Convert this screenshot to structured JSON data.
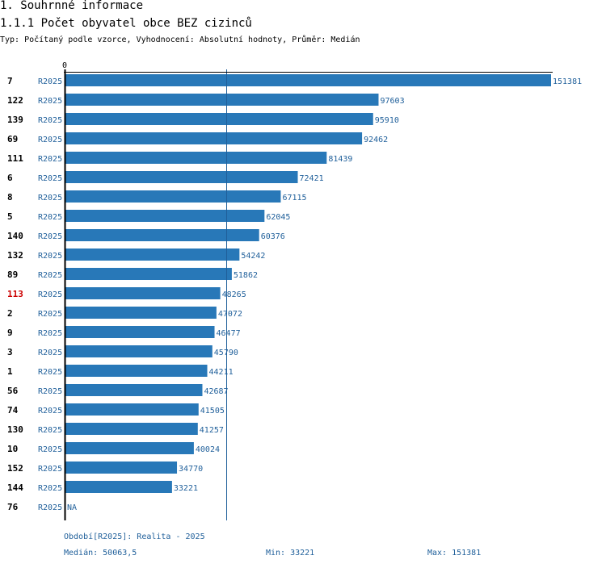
{
  "header": {
    "title": "1. Souhrnné informace",
    "subtitle": "1.1.1 Počet obyvatel obce BEZ cizinců",
    "type_line": "Typ: Počítaný podle vzorce, Vyhodnocení: Absolutní hodnoty, Průměr: Medián"
  },
  "colors": {
    "bar": "#2878b8",
    "label": "#1f5f9a",
    "highlight": "#cc0000",
    "axis": "#000000",
    "median_line": "#1f5f9a"
  },
  "chart_data": {
    "type": "bar",
    "orientation": "horizontal",
    "axis_zero_label": "0",
    "xlim": [
      0,
      151381
    ],
    "median": 50063.5,
    "highlight_category": "113",
    "period_label": "R2025",
    "categories": [
      "7",
      "122",
      "139",
      "69",
      "111",
      "6",
      "8",
      "5",
      "140",
      "132",
      "89",
      "113",
      "2",
      "9",
      "3",
      "1",
      "56",
      "74",
      "130",
      "10",
      "152",
      "144",
      "76"
    ],
    "values": [
      151381,
      97603,
      95910,
      92462,
      81439,
      72421,
      67115,
      62045,
      60376,
      54242,
      51862,
      48265,
      47072,
      46477,
      45790,
      44211,
      42687,
      41505,
      41257,
      40024,
      34770,
      33221,
      null
    ],
    "value_labels": [
      "151381",
      "97603",
      "95910",
      "92462",
      "81439",
      "72421",
      "67115",
      "62045",
      "60376",
      "54242",
      "51862",
      "48265",
      "47072",
      "46477",
      "45790",
      "44211",
      "42687",
      "41505",
      "41257",
      "40024",
      "34770",
      "33221",
      "NA"
    ]
  },
  "footer": {
    "period": "Období[R2025]: Realita - 2025",
    "median": "Medián: 50063,5",
    "min": "Min: 33221",
    "max": "Max: 151381"
  }
}
